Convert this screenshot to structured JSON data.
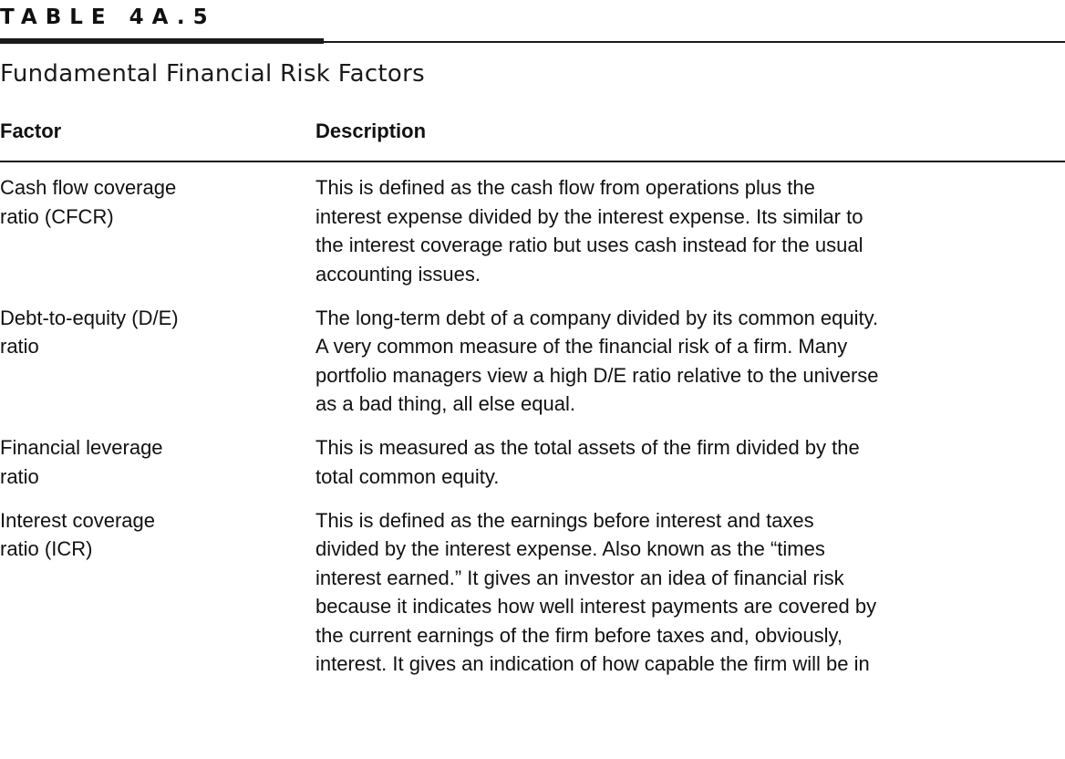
{
  "table": {
    "label": "TABLE 4A.5",
    "title": "Fundamental Financial Risk Factors",
    "headers": {
      "factor": "Factor",
      "description": "Description"
    },
    "rows": [
      {
        "factor": "Cash flow coverage\nratio (CFCR)",
        "description_lines": [
          "This is defined as the cash flow from operations plus the",
          "interest expense divided by the interest expense. Its similar to",
          "the interest coverage ratio but uses cash instead for the usual",
          "accounting issues."
        ]
      },
      {
        "factor": "Debt-to-equity (D/E)\nratio",
        "description_lines": [
          "The long-term debt of a company divided by its common equity.",
          "A very common measure of the financial risk of a firm. Many",
          "portfolio managers view a high D/E ratio relative to the universe",
          "as a bad thing, all else equal."
        ]
      },
      {
        "factor": "Financial leverage\nratio",
        "description_lines": [
          "This is measured as the total assets of the firm divided by the",
          "total common equity."
        ]
      },
      {
        "factor": "Interest coverage\nratio (ICR)",
        "description_lines": [
          "This is defined as the earnings before interest and taxes",
          "divided by the interest expense. Also known as the “times",
          "interest earned.” It gives an investor an idea of financial risk",
          "because it indicates how well interest payments are covered by",
          "the current earnings of the firm before taxes and, obviously,",
          "interest. It gives an indication of how capable the firm will be in"
        ]
      }
    ]
  }
}
